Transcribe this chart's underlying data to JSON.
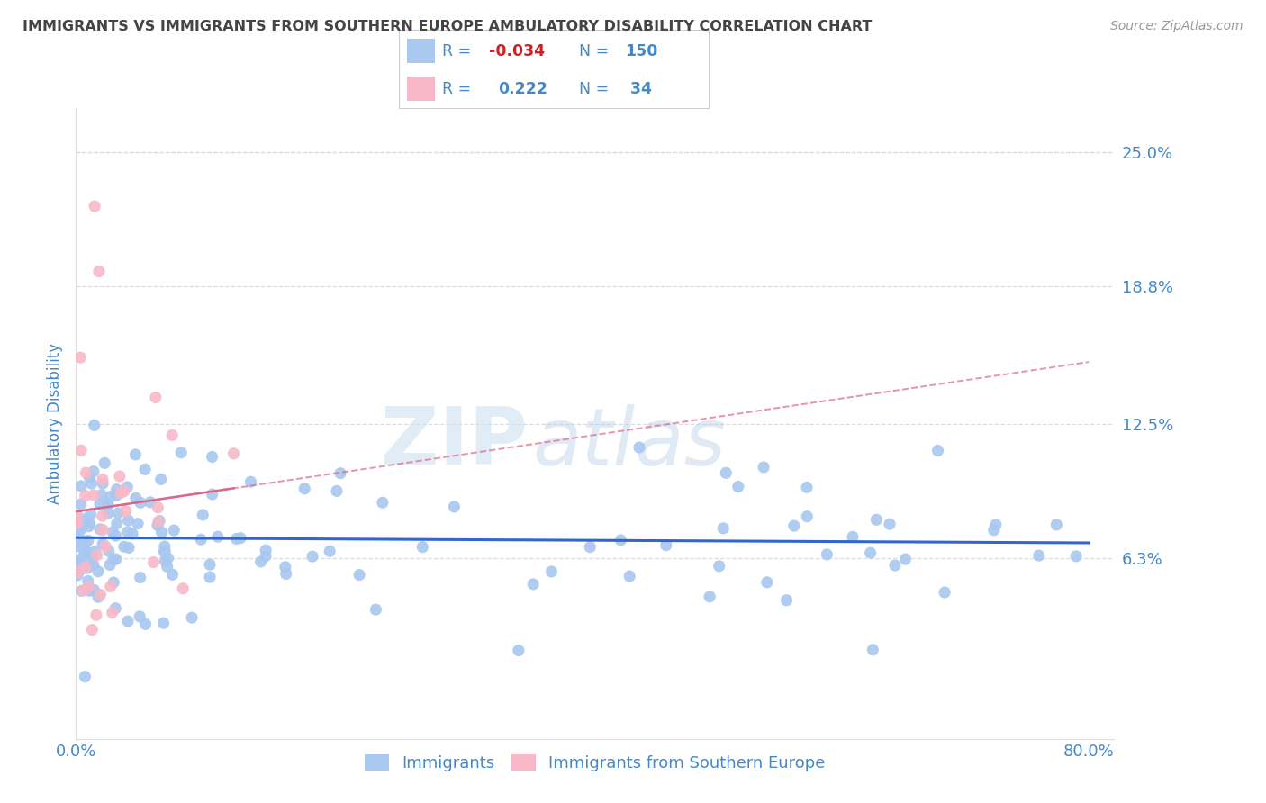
{
  "title": "IMMIGRANTS VS IMMIGRANTS FROM SOUTHERN EUROPE AMBULATORY DISABILITY CORRELATION CHART",
  "source": "Source: ZipAtlas.com",
  "ylabel": "Ambulatory Disability",
  "yticks": [
    "6.3%",
    "12.5%",
    "18.8%",
    "25.0%"
  ],
  "ytick_vals": [
    0.063,
    0.125,
    0.188,
    0.25
  ],
  "xlim": [
    0.0,
    0.82
  ],
  "ylim": [
    -0.02,
    0.27
  ],
  "blue_R": -0.034,
  "blue_N": 150,
  "pink_R": 0.222,
  "pink_N": 34,
  "watermark_zip": "ZIP",
  "watermark_atlas": "atlas",
  "background_color": "#ffffff",
  "scatter_blue_color": "#a8c8f0",
  "scatter_pink_color": "#f8b8c8",
  "line_blue_color": "#3366cc",
  "line_pink_color": "#dd6688",
  "grid_color": "#dddddd",
  "title_color": "#444444",
  "axis_label_color": "#4488cc",
  "legend_text_color": "#4488cc",
  "legend_R_neg_color": "#cc2222",
  "random_seed": 99
}
